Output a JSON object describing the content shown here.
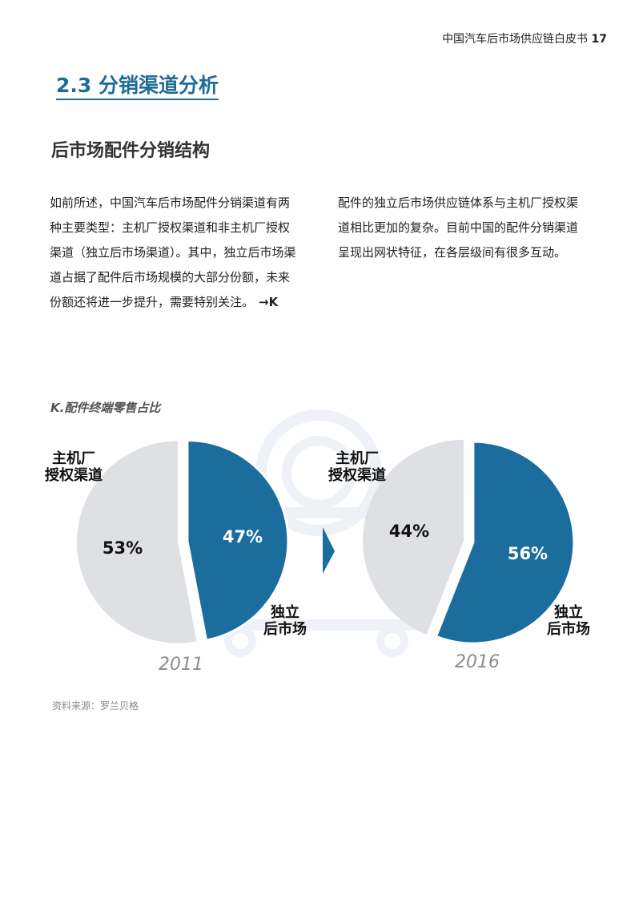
{
  "header": {
    "title": "中国汽车后市场供应链白皮书",
    "page": "17"
  },
  "section": {
    "title": "2.3  分销渠道分析"
  },
  "subsection": {
    "title": "后市场配件分销结构"
  },
  "body": {
    "left": "如前所述，中国汽车后市场配件分销渠道有两种主要类型：主机厂授权渠道和非主机厂授权渠道（独立后市场渠道）。其中，独立后市场渠道占据了配件后市场规模的大部分份额，未来份额还将进一步提升，需要特别关注。",
    "ref": "→K",
    "right": "配件的独立后市场供应链体系与主机厂授权渠道相比更加的复杂。目前中国的配件分销渠道呈现出网状特征，在各层级间有很多互动。"
  },
  "chart_data": {
    "type": "pie",
    "title": "K.配件终端零售占比",
    "series_labels": {
      "oem": [
        "主机厂",
        "授权渠道"
      ],
      "independent": [
        "独立",
        "后市场"
      ]
    },
    "pies": [
      {
        "year": "2011",
        "slices": [
          {
            "key": "oem",
            "value": 53,
            "label": "53%"
          },
          {
            "key": "independent",
            "value": 47,
            "label": "47%"
          }
        ]
      },
      {
        "year": "2016",
        "slices": [
          {
            "key": "oem",
            "value": 44,
            "label": "44%"
          },
          {
            "key": "independent",
            "value": 56,
            "label": "56%"
          }
        ]
      }
    ],
    "colors": {
      "oem": "#dfe0e3",
      "independent": "#1a6d9c",
      "watermark": "#eef1f6"
    }
  },
  "footer": {
    "source": "资料来源：罗兰贝格"
  }
}
